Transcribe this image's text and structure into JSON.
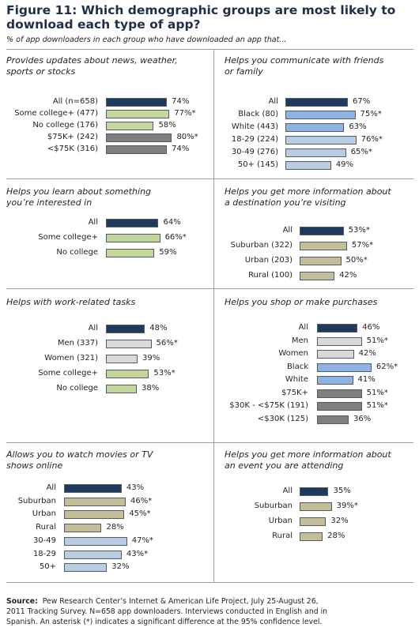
{
  "header": {
    "title_line1": "Figure 11: Which demographic groups are most likely to",
    "title_line2": "download each type of app?",
    "subtitle": "% of app downloaders in each group who have downloaded an app that..."
  },
  "colors": {
    "all": "#1f3a5f",
    "education": "#c3d69b",
    "income": "#7f7f7f",
    "race": "#8db4e2",
    "gender": "#d9d9d9",
    "age": "#b8cce4",
    "community": "#c4bd97"
  },
  "chart_data": [
    {
      "type": "bar",
      "title_lines": [
        "Provides updates about news, weather,",
        "sports or stocks"
      ],
      "categories": [
        "All (n=658)",
        "Some college+ (477)",
        "No college (176)",
        "$75K+ (242)",
        "<$75K (316)"
      ],
      "values": [
        74,
        77,
        58,
        80,
        74
      ],
      "value_labels": [
        "74%",
        "77%*",
        "58%",
        "80%*",
        "74%"
      ],
      "groups": [
        "all",
        "education",
        "education",
        "income",
        "income"
      ]
    },
    {
      "type": "bar",
      "title_lines": [
        "Helps you communicate with friends",
        "or family"
      ],
      "categories": [
        "All",
        "Black (80)",
        "White (443)",
        "18-29 (224)",
        "30-49 (276)",
        "50+ (145)"
      ],
      "values": [
        67,
        75,
        63,
        76,
        65,
        49
      ],
      "value_labels": [
        "67%",
        "75%*",
        "63%",
        "76%*",
        "65%*",
        "49%"
      ],
      "groups": [
        "all",
        "race",
        "race",
        "age",
        "age",
        "age"
      ]
    },
    {
      "type": "bar",
      "title_lines": [
        "Helps you learn about something",
        "you’re interested in"
      ],
      "categories": [
        "All",
        "Some college+",
        "No college"
      ],
      "values": [
        64,
        66,
        59
      ],
      "value_labels": [
        "64%",
        "66%*",
        "59%"
      ],
      "groups": [
        "all",
        "education",
        "education"
      ]
    },
    {
      "type": "bar",
      "title_lines": [
        "Helps you get more information about",
        "a destination you’re visiting"
      ],
      "categories": [
        "All",
        "Suburban (322)",
        "Urban (203)",
        "Rural (100)"
      ],
      "values": [
        53,
        57,
        50,
        42
      ],
      "value_labels": [
        "53%*",
        "57%*",
        "50%*",
        "42%"
      ],
      "groups": [
        "all",
        "community",
        "community",
        "community"
      ]
    },
    {
      "type": "bar",
      "title_lines": [
        "Helps with work-related tasks"
      ],
      "categories": [
        "All",
        "Men (337)",
        "Women (321)",
        "Some college+",
        "No college"
      ],
      "values": [
        48,
        56,
        39,
        53,
        38
      ],
      "value_labels": [
        "48%",
        "56%*",
        "39%",
        "53%*",
        "38%"
      ],
      "groups": [
        "all",
        "gender",
        "gender",
        "education",
        "education"
      ]
    },
    {
      "type": "bar",
      "title_lines": [
        "Helps you shop or make purchases"
      ],
      "categories": [
        "All",
        "Men",
        "Women",
        "Black",
        "White",
        "$75K+",
        "$30K - <$75K (191)",
        "<$30K (125)"
      ],
      "values": [
        46,
        51,
        42,
        62,
        41,
        51,
        51,
        36
      ],
      "value_labels": [
        "46%",
        "51%*",
        "42%",
        "62%*",
        "41%",
        "51%*",
        "51%*",
        "36%"
      ],
      "groups": [
        "all",
        "gender",
        "gender",
        "race",
        "race",
        "income",
        "income",
        "income"
      ]
    },
    {
      "type": "bar",
      "title_lines": [
        "Allows you to watch movies or TV",
        "shows online"
      ],
      "categories": [
        "All",
        "Suburban",
        "Urban",
        "Rural",
        "30-49",
        "18-29",
        "50+"
      ],
      "values": [
        43,
        46,
        45,
        28,
        47,
        43,
        32
      ],
      "value_labels": [
        "43%",
        "46%*",
        "45%*",
        "28%",
        "47%*",
        "43%*",
        "32%"
      ],
      "groups": [
        "all",
        "community",
        "community",
        "community",
        "age",
        "age",
        "age"
      ]
    },
    {
      "type": "bar",
      "title_lines": [
        "Helps you get more information about",
        "an event you are attending"
      ],
      "categories": [
        "All",
        "Suburban",
        "Urban",
        "Rural"
      ],
      "values": [
        35,
        39,
        32,
        28
      ],
      "value_labels": [
        "35%",
        "39%*",
        "32%",
        "28%"
      ],
      "groups": [
        "all",
        "community",
        "community",
        "community"
      ]
    }
  ],
  "source": {
    "label": "Source:",
    "line1": "Pew Research Center’s Internet & American Life Project, July 25-August 26,",
    "line2": "2011 Tracking Survey.  N=658 app downloaders. Interviews conducted in English and in",
    "line3": "Spanish. An asterisk (*) indicates a significant difference at the 95% confidence level."
  }
}
